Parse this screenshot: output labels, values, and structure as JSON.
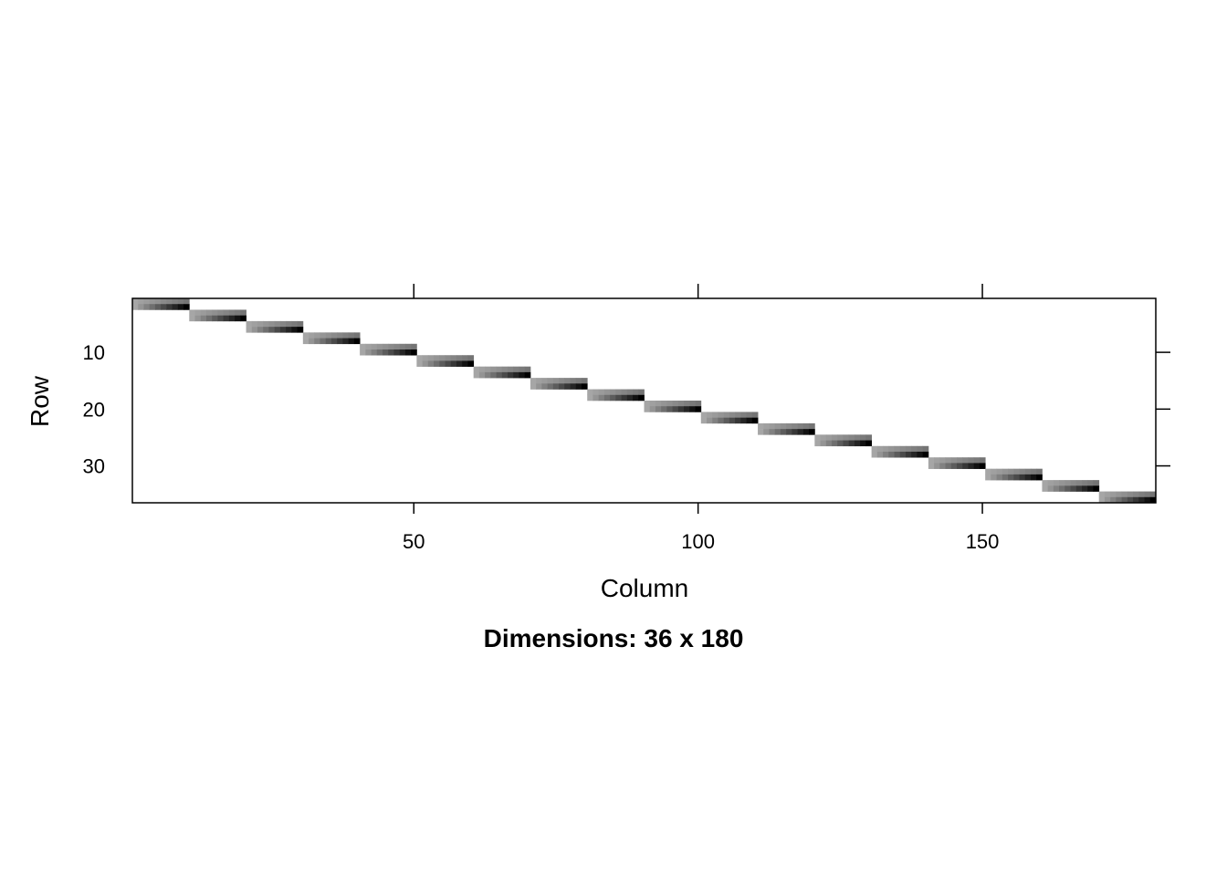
{
  "chart_data": {
    "type": "heatmap",
    "title": "",
    "caption": "Dimensions: 36 x 180",
    "xlabel": "Column",
    "ylabel": "Row",
    "nrow": 36,
    "ncol": 180,
    "xlim": [
      0.5,
      180.5
    ],
    "ylim": [
      36.5,
      0.5
    ],
    "x_ticks": [
      50,
      100,
      150
    ],
    "y_ticks": [
      10,
      20,
      30
    ],
    "x_tick_labels": [
      "50",
      "100",
      "150"
    ],
    "y_tick_labels": [
      "10",
      "20",
      "30"
    ],
    "pattern": "block diagonal: rows 2k-1 and 2k are nonzero over columns 10k-9 to 10k, k = 1..18",
    "block_count": 18,
    "rows_per_block": 2,
    "cols_per_block": 10,
    "gray_light": "#a6a6a6",
    "gray_dark": "#000000",
    "background": "#ffffff"
  }
}
